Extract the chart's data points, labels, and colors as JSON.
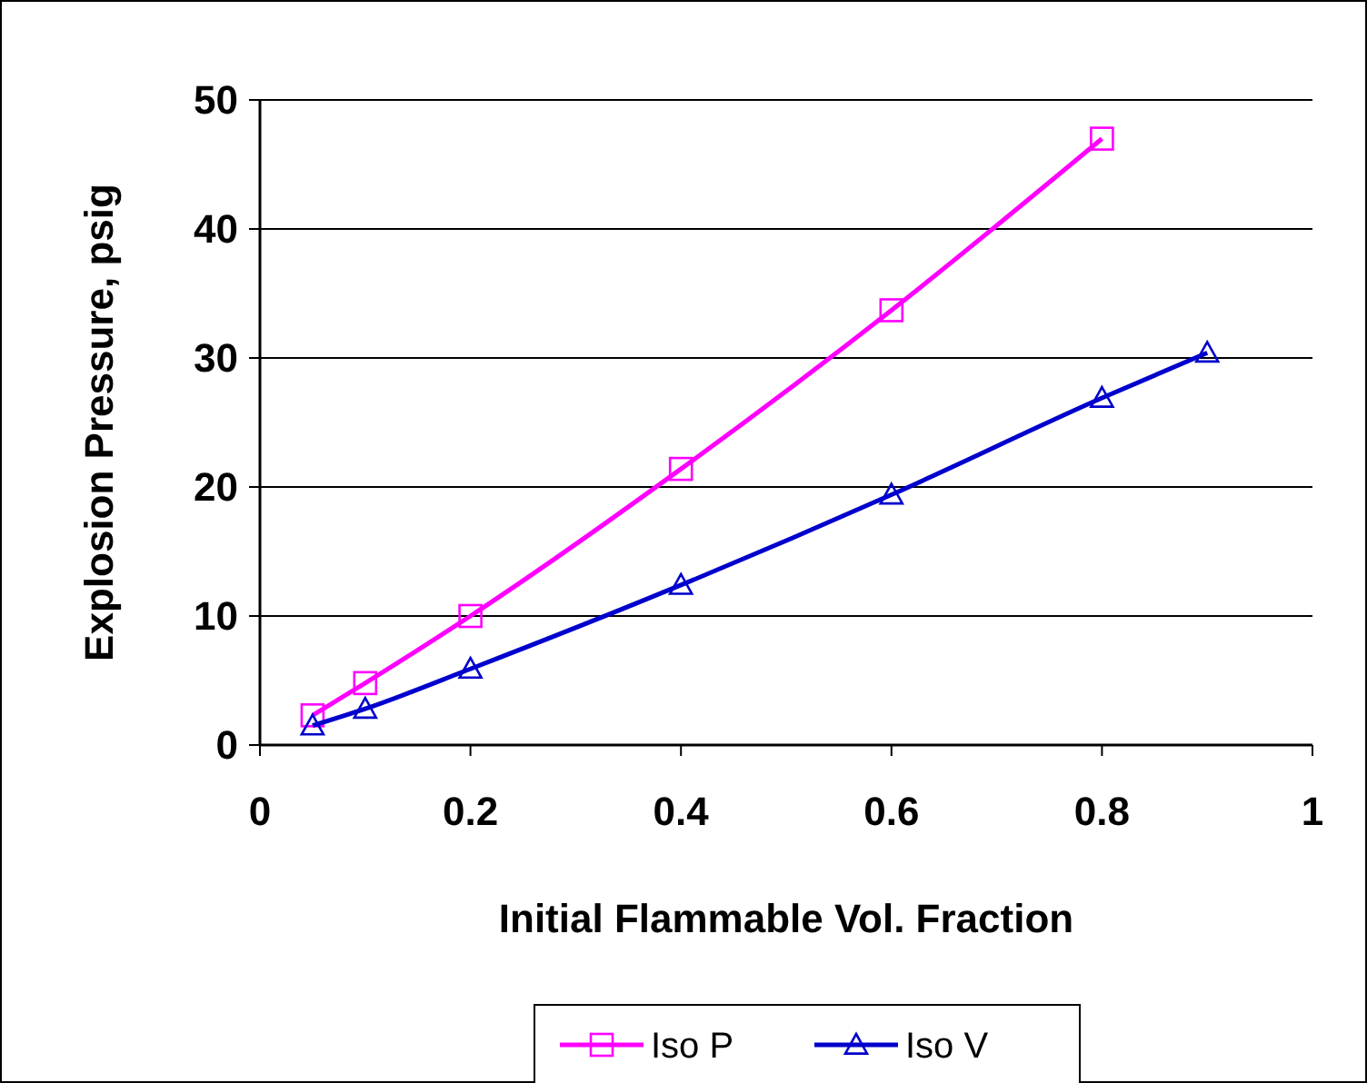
{
  "chart_data": {
    "type": "line",
    "xlabel": "Initial Flammable Vol. Fraction",
    "ylabel": "Explosion Pressure, psig",
    "xlim": [
      0,
      1
    ],
    "xticks": [
      0,
      0.2,
      0.4,
      0.6,
      0.8,
      1
    ],
    "ylim": [
      0,
      50
    ],
    "yticks": [
      0,
      10,
      20,
      30,
      40,
      50
    ],
    "grid": "y",
    "legend": "bottom",
    "line_style": "solid",
    "series": [
      {
        "name": "Iso P",
        "color": "#ff00ff",
        "marker": "square",
        "x": [
          0.05,
          0.1,
          0.2,
          0.4,
          0.6,
          0.8
        ],
        "values": [
          2.3,
          4.8,
          10,
          21.4,
          33.7,
          47
        ]
      },
      {
        "name": "Iso V",
        "color": "#0000cc",
        "marker": "triangle",
        "x": [
          0.05,
          0.1,
          0.2,
          0.4,
          0.6,
          0.8,
          0.9
        ],
        "values": [
          1.5,
          2.8,
          5.9,
          12.4,
          19.4,
          26.9,
          30.4
        ]
      }
    ]
  }
}
